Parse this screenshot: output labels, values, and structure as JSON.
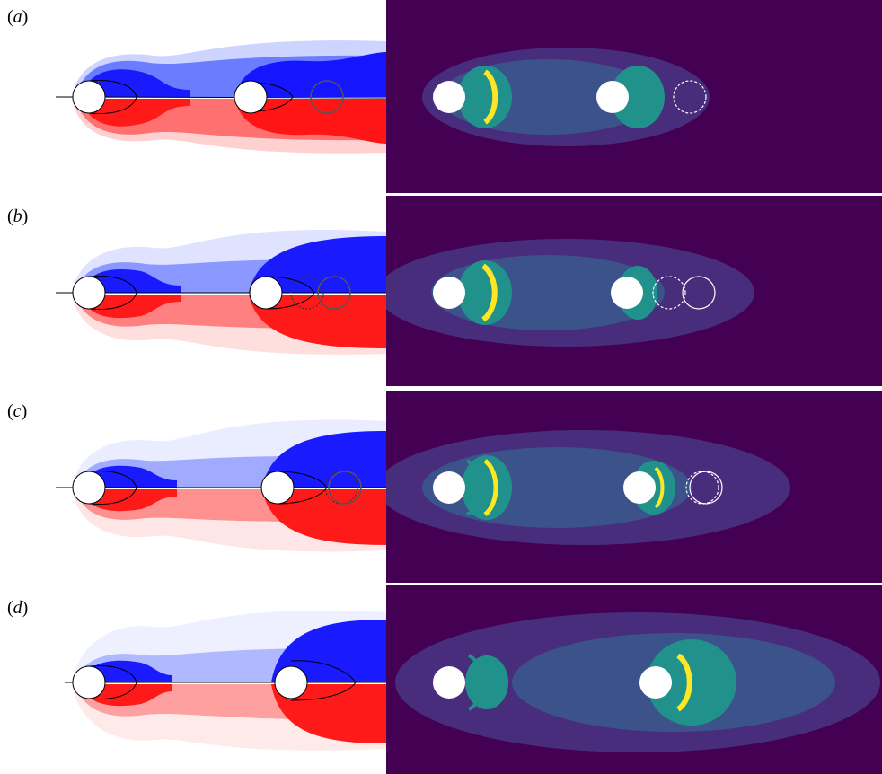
{
  "figure": {
    "panels": [
      {
        "id": "a",
        "label_open": "(",
        "label_letter": "a",
        "label_close": ")"
      },
      {
        "id": "b",
        "label_open": "(",
        "label_letter": "b",
        "label_close": ")"
      },
      {
        "id": "c",
        "label_open": "(",
        "label_letter": "c",
        "label_close": ")"
      },
      {
        "id": "d",
        "label_open": "(",
        "label_letter": "d",
        "label_close": ")"
      }
    ],
    "colors": {
      "vorticity_positive": "#0000ff",
      "vorticity_negative": "#ff0000",
      "field_background": "#440154",
      "field_low": "#3b528b",
      "field_mid": "#21918c",
      "field_high": "#fde725",
      "cylinder": "#ffffff",
      "contour_line": "#000000"
    }
  }
}
